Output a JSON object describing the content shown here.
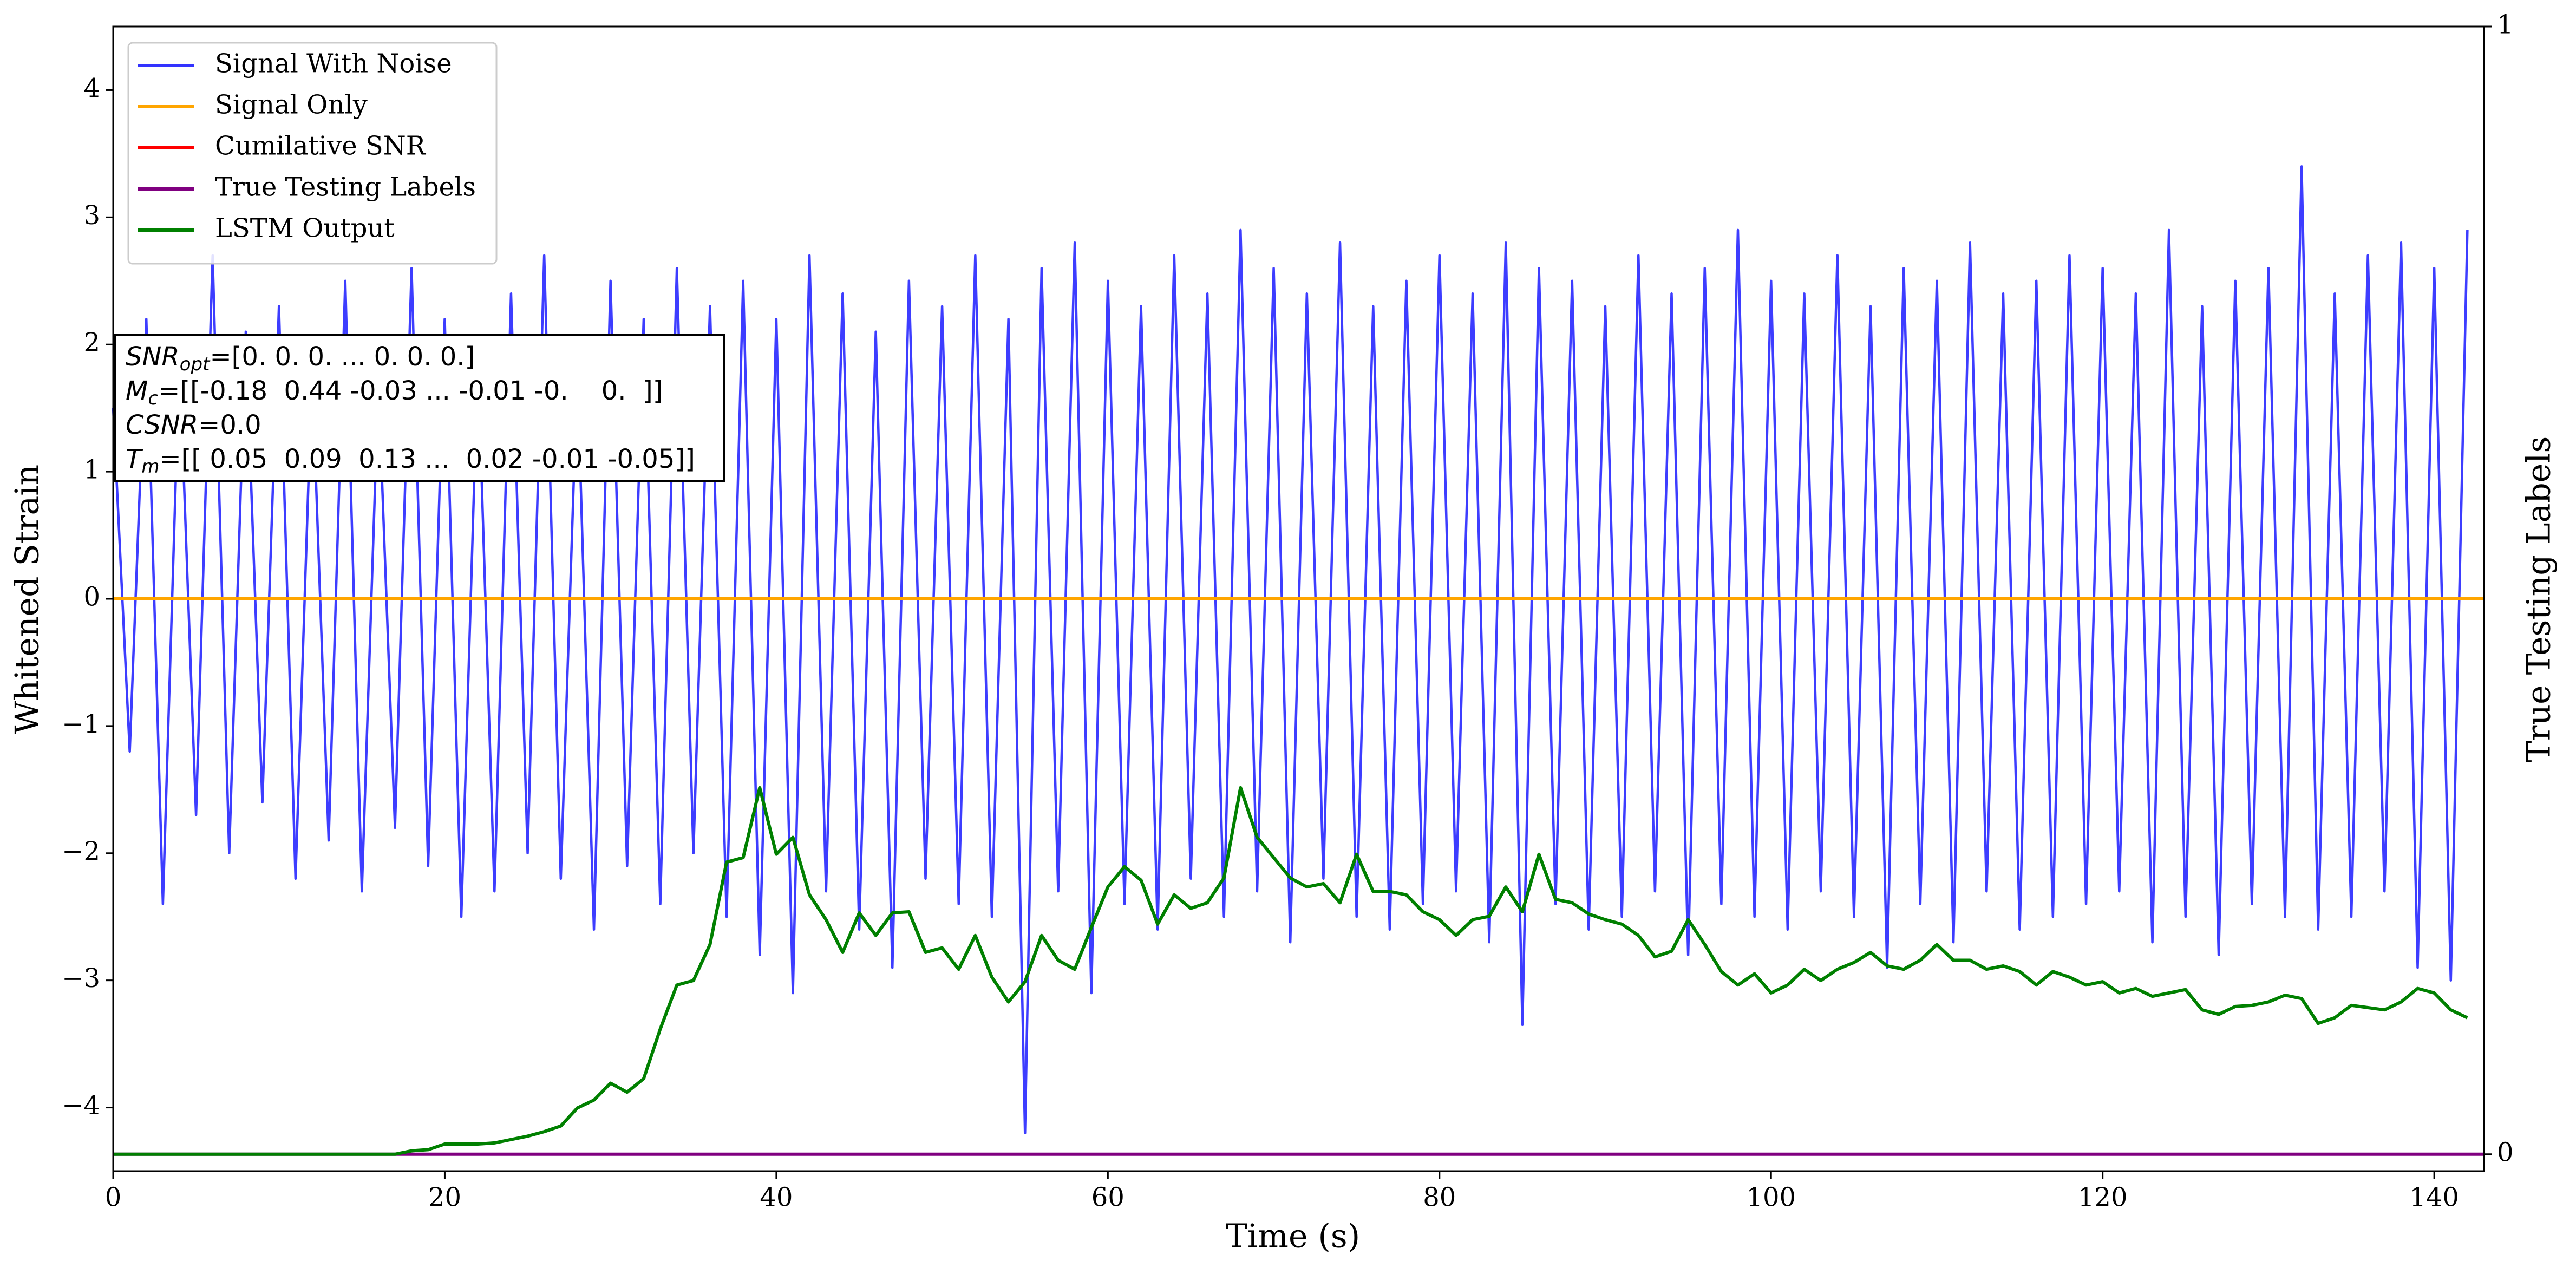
{
  "chart_data": {
    "type": "line",
    "xlabel": "Time (s)",
    "ylabel": "Whitened Strain",
    "y2label": "True Testing Labels",
    "xlim": [
      0,
      143
    ],
    "ylim": [
      -4.5,
      4.5
    ],
    "y2lim": [
      -0.015,
      1.0
    ],
    "xticks": [
      0,
      20,
      40,
      60,
      80,
      100,
      120,
      140
    ],
    "yticks": [
      {
        "value": -4,
        "label": "−4"
      },
      {
        "value": -3,
        "label": "−3"
      },
      {
        "value": -2,
        "label": "−2"
      },
      {
        "value": -1,
        "label": "−1"
      },
      0,
      1,
      2,
      3,
      4
    ],
    "y2ticks": [
      0,
      1
    ],
    "grid": false,
    "legend": "upper left",
    "x": [
      0,
      1,
      2,
      3,
      4,
      5,
      6,
      7,
      8,
      9,
      10,
      11,
      12,
      13,
      14,
      15,
      16,
      17,
      18,
      19,
      20,
      21,
      22,
      23,
      24,
      25,
      26,
      27,
      28,
      29,
      30,
      31,
      32,
      33,
      34,
      35,
      36,
      37,
      38,
      39,
      40,
      41,
      42,
      43,
      44,
      45,
      46,
      47,
      48,
      49,
      50,
      51,
      52,
      53,
      54,
      55,
      56,
      57,
      58,
      59,
      60,
      61,
      62,
      63,
      64,
      65,
      66,
      67,
      68,
      69,
      70,
      71,
      72,
      73,
      74,
      75,
      76,
      77,
      78,
      79,
      80,
      81,
      82,
      83,
      84,
      85,
      86,
      87,
      88,
      89,
      90,
      91,
      92,
      93,
      94,
      95,
      96,
      97,
      98,
      99,
      100,
      101,
      102,
      103,
      104,
      105,
      106,
      107,
      108,
      109,
      110,
      111,
      112,
      113,
      114,
      115,
      116,
      117,
      118,
      119,
      120,
      121,
      122,
      123,
      124,
      125,
      126,
      127,
      128,
      129,
      130,
      131,
      132,
      133,
      134,
      135,
      136,
      137,
      138,
      139,
      140,
      141,
      142
    ],
    "series": [
      {
        "name": "Signal With Noise",
        "color": "#3333ff",
        "values": [
          1.5,
          -1.2,
          2.2,
          -2.4,
          1.9,
          -1.7,
          2.7,
          -2.0,
          2.1,
          -1.6,
          2.3,
          -2.2,
          1.8,
          -1.9,
          2.5,
          -2.3,
          1.7,
          -1.8,
          2.6,
          -2.1,
          2.2,
          -2.5,
          1.9,
          -2.3,
          2.4,
          -2.0,
          2.7,
          -2.2,
          1.8,
          -2.6,
          2.5,
          -2.1,
          2.2,
          -2.4,
          2.6,
          -2.0,
          2.3,
          -2.5,
          2.5,
          -2.8,
          2.2,
          -3.1,
          2.7,
          -2.3,
          2.4,
          -2.6,
          2.1,
          -2.9,
          2.5,
          -2.2,
          2.3,
          -2.4,
          2.7,
          -2.5,
          2.2,
          -4.2,
          2.6,
          -2.3,
          2.8,
          -3.1,
          2.5,
          -2.4,
          2.3,
          -2.6,
          2.7,
          -2.2,
          2.4,
          -2.5,
          2.9,
          -2.3,
          2.6,
          -2.7,
          2.4,
          -2.2,
          2.8,
          -2.5,
          2.3,
          -2.6,
          2.5,
          -2.4,
          2.7,
          -2.3,
          2.4,
          -2.7,
          2.8,
          -3.35,
          2.6,
          -2.4,
          2.5,
          -2.6,
          2.3,
          -2.5,
          2.7,
          -2.3,
          2.4,
          -2.8,
          2.6,
          -2.4,
          2.9,
          -2.5,
          2.5,
          -2.6,
          2.4,
          -2.3,
          2.7,
          -2.5,
          2.3,
          -2.9,
          2.6,
          -2.4,
          2.5,
          -2.7,
          2.8,
          -2.3,
          2.4,
          -2.6,
          2.5,
          -2.5,
          2.7,
          -2.4,
          2.6,
          -2.3,
          2.4,
          -2.7,
          2.9,
          -2.5,
          2.3,
          -2.8,
          2.5,
          -2.4,
          2.6,
          -2.5,
          3.4,
          -2.6,
          2.4,
          -2.5,
          2.7,
          -2.3,
          2.8,
          -2.9,
          2.6,
          -3.0,
          2.9
        ]
      },
      {
        "name": "Signal Only",
        "color": "#ffa500",
        "x": [
          0,
          143
        ],
        "values": [
          0,
          0
        ]
      },
      {
        "name": "Cumilative SNR",
        "color": "#ff0000",
        "x": [
          0,
          143
        ],
        "values": [
          0,
          0
        ]
      },
      {
        "name": "True Testing Labels",
        "color": "#800080",
        "axis": "y2",
        "x": [
          0,
          143
        ],
        "values": [
          0,
          0
        ]
      },
      {
        "name": "LSTM Output",
        "color": "#008000",
        "axis": "y2",
        "values": [
          0,
          0,
          0,
          0,
          0,
          0,
          0,
          0,
          0,
          0,
          0,
          0,
          0,
          0,
          0,
          0,
          0,
          0,
          0.003,
          0.004,
          0.009,
          0.009,
          0.009,
          0.01,
          0.013,
          0.016,
          0.02,
          0.025,
          0.041,
          0.048,
          0.063,
          0.055,
          0.067,
          0.111,
          0.15,
          0.154,
          0.186,
          0.259,
          0.263,
          0.325,
          0.266,
          0.281,
          0.23,
          0.208,
          0.179,
          0.214,
          0.194,
          0.214,
          0.215,
          0.179,
          0.183,
          0.164,
          0.194,
          0.157,
          0.135,
          0.153,
          0.194,
          0.172,
          0.164,
          0.201,
          0.237,
          0.255,
          0.243,
          0.204,
          0.23,
          0.218,
          0.223,
          0.245,
          0.325,
          0.281,
          0.263,
          0.245,
          0.237,
          0.24,
          0.223,
          0.266,
          0.233,
          0.233,
          0.23,
          0.215,
          0.208,
          0.194,
          0.208,
          0.211,
          0.237,
          0.215,
          0.266,
          0.226,
          0.223,
          0.213,
          0.208,
          0.204,
          0.194,
          0.175,
          0.18,
          0.208,
          0.186,
          0.162,
          0.15,
          0.16,
          0.143,
          0.15,
          0.164,
          0.154,
          0.164,
          0.17,
          0.179,
          0.167,
          0.164,
          0.172,
          0.186,
          0.172,
          0.172,
          0.164,
          0.167,
          0.162,
          0.15,
          0.162,
          0.157,
          0.15,
          0.153,
          0.143,
          0.147,
          0.14,
          0.143,
          0.146,
          0.128,
          0.124,
          0.131,
          0.132,
          0.135,
          0.141,
          0.138,
          0.116,
          0.121,
          0.132,
          0.13,
          0.128,
          0.135,
          0.147,
          0.143,
          0.128,
          0.121
        ]
      }
    ],
    "annotation": [
      {
        "symbol": "SNR",
        "subscript": "opt",
        "text": "=[0. 0. 0. ... 0. 0. 0.]"
      },
      {
        "symbol": "M",
        "subscript": "c",
        "text": "=[[-0.18  0.44 -0.03 ... -0.01 -0.    0.  ]]"
      },
      {
        "symbol": "CSNR",
        "text": "=0.0"
      },
      {
        "symbol": "T",
        "subscript": "m",
        "text": "=[[ 0.05  0.09  0.13 ...  0.02 -0.01 -0.05]]"
      }
    ]
  }
}
